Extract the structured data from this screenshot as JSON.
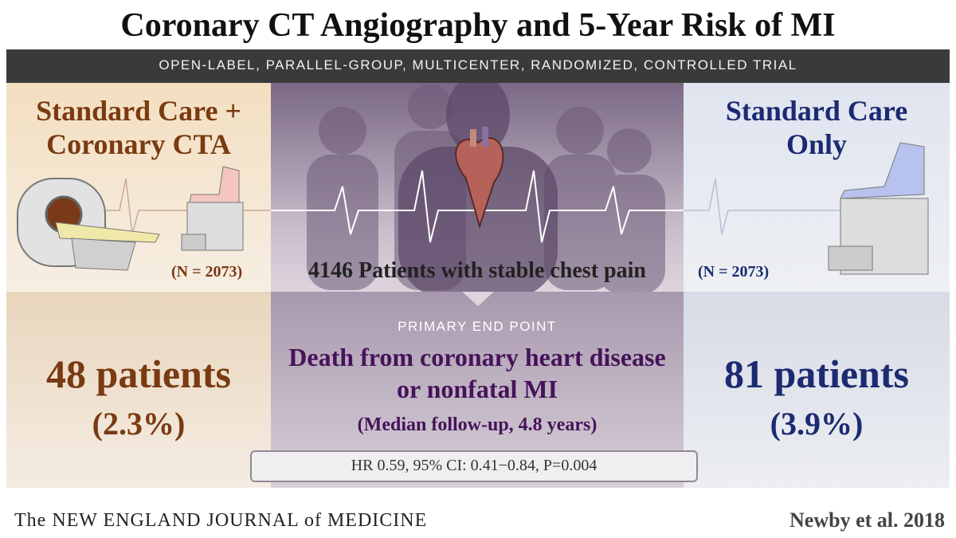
{
  "header": {
    "title": "Coronary CT Angiography and 5-Year Risk of MI",
    "design": "OPEN-LABEL, PARALLEL-GROUP, MULTICENTER, RANDOMIZED, CONTROLLED TRIAL"
  },
  "arms": [
    {
      "name_lines": [
        "Standard Care +",
        "Coronary CTA"
      ],
      "n": "(N = 2073)",
      "events": "48 patients",
      "rate": "(2.3%)"
    },
    {
      "name_lines": [
        "Standard Care",
        "Only"
      ],
      "n": "(N = 2073)",
      "events": "81 patients",
      "rate": "(3.9%)"
    }
  ],
  "population": "4146 Patients with stable chest pain",
  "end_point": {
    "label": "PRIMARY END POINT",
    "text_lines": [
      "Death from coronary heart disease",
      "or nonfatal MI"
    ],
    "follow_up": "(Median follow-up, 4.8 years)",
    "stats": "HR 0.59, 95% CI: 0.41−0.84, P=0.004"
  },
  "footer": {
    "journal": "The NEW ENGLAND JOURNAL of MEDICINE",
    "citation": "Newby et al. 2018"
  }
}
